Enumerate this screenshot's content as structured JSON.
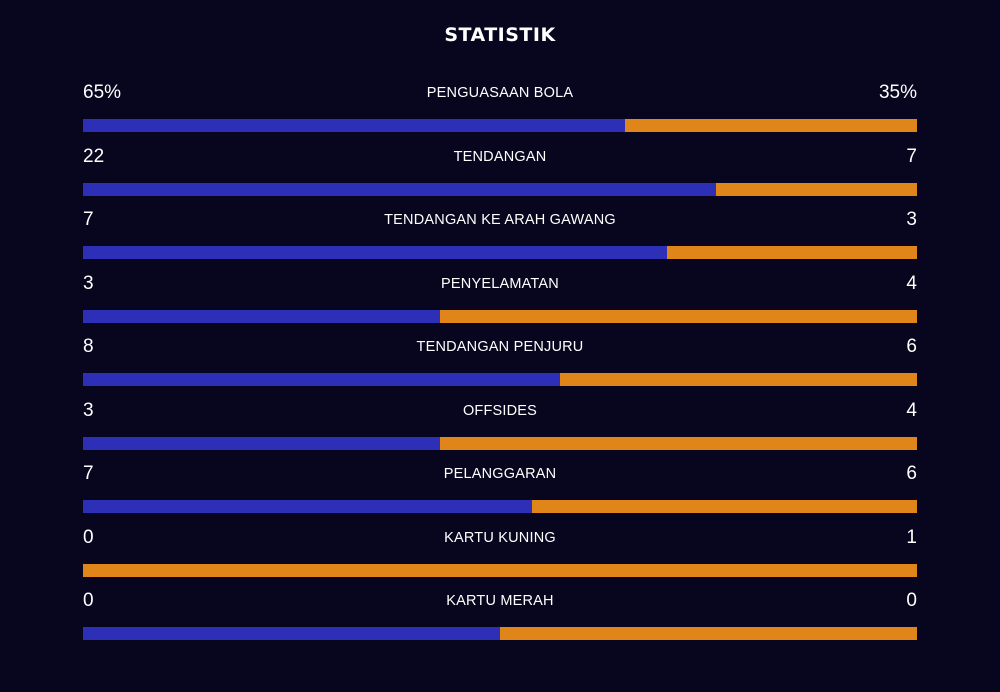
{
  "title": "STATISTIK",
  "colors": {
    "background": "#07061e",
    "home": "#2d2fb6",
    "away": "#e0851a",
    "text": "#ffffff"
  },
  "stats": [
    {
      "label": "PENGUASAAN BOLA",
      "home": "65%",
      "away": "35%",
      "home_share": 0.65
    },
    {
      "label": "TENDANGAN",
      "home": "22",
      "away": "7",
      "home_share": 0.759
    },
    {
      "label": "TENDANGAN KE ARAH GAWANG",
      "home": "7",
      "away": "3",
      "home_share": 0.7
    },
    {
      "label": "PENYELAMATAN",
      "home": "3",
      "away": "4",
      "home_share": 0.4286
    },
    {
      "label": "TENDANGAN PENJURU",
      "home": "8",
      "away": "6",
      "home_share": 0.5714
    },
    {
      "label": "OFFSIDES",
      "home": "3",
      "away": "4",
      "home_share": 0.4286
    },
    {
      "label": "PELANGGARAN",
      "home": "7",
      "away": "6",
      "home_share": 0.5385
    },
    {
      "label": "KARTU KUNING",
      "home": "0",
      "away": "1",
      "home_share": 0
    },
    {
      "label": "KARTU MERAH",
      "home": "0",
      "away": "0",
      "home_share": 0.5
    }
  ]
}
